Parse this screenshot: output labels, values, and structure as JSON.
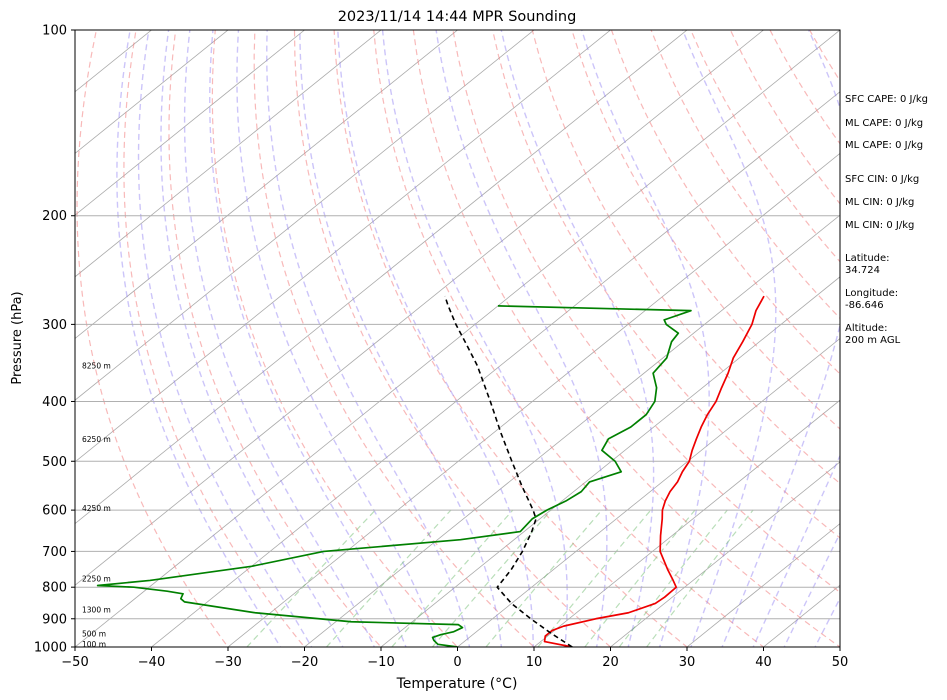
{
  "chart_data": {
    "type": "line",
    "diagram": "skew-t log-p",
    "title": "2023/11/14 14:44 MPR Sounding",
    "xlabel": "Temperature (°C)",
    "ylabel": "Pressure (hPa)",
    "xlim": [
      -50,
      50
    ],
    "ylim": [
      1000,
      100
    ],
    "y_scale": "log",
    "grid": true,
    "x_ticks": [
      -50,
      -40,
      -30,
      -20,
      -10,
      0,
      10,
      20,
      30,
      40,
      50
    ],
    "x_tick_labels": [
      "−50",
      "−40",
      "−30",
      "−20",
      "−10",
      "0",
      "10",
      "20",
      "30",
      "40",
      "50"
    ],
    "y_ticks": [
      1000,
      900,
      800,
      700,
      600,
      500,
      400,
      300,
      200,
      100
    ],
    "y_tick_labels": [
      "1000",
      "900",
      "800",
      "700",
      "600",
      "500",
      "400",
      "300",
      "200",
      "100"
    ],
    "series": [
      {
        "color": "#ee0000",
        "points": [
          [
            1000,
            15.0
          ],
          [
            980,
            10.5
          ],
          [
            960,
            9.7
          ],
          [
            940,
            9.7
          ],
          [
            925,
            10.5
          ],
          [
            900,
            13.5
          ],
          [
            880,
            16.8
          ],
          [
            850,
            18.8
          ],
          [
            830,
            19.0
          ],
          [
            800,
            18.9
          ],
          [
            780,
            17.4
          ],
          [
            750,
            15.0
          ],
          [
            700,
            11.0
          ],
          [
            660,
            8.5
          ],
          [
            620,
            6.0
          ],
          [
            600,
            4.6
          ],
          [
            580,
            3.5
          ],
          [
            560,
            2.6
          ],
          [
            540,
            2.0
          ],
          [
            520,
            1.0
          ],
          [
            500,
            0.2
          ],
          [
            480,
            -1.2
          ],
          [
            460,
            -2.5
          ],
          [
            440,
            -3.8
          ],
          [
            420,
            -5.0
          ],
          [
            400,
            -6.0
          ],
          [
            380,
            -7.5
          ],
          [
            360,
            -9.0
          ],
          [
            340,
            -10.8
          ],
          [
            320,
            -12.2
          ],
          [
            300,
            -13.8
          ],
          [
            285,
            -15.5
          ],
          [
            270,
            -16.8
          ]
        ]
      },
      {
        "color": "#008000",
        "points": [
          [
            1000,
            0.0
          ],
          [
            990,
            -3.0
          ],
          [
            975,
            -4.2
          ],
          [
            965,
            -4.8
          ],
          [
            955,
            -4.2
          ],
          [
            945,
            -3.0
          ],
          [
            930,
            -2.5
          ],
          [
            920,
            -3.5
          ],
          [
            910,
            -18.0
          ],
          [
            880,
            -32.0
          ],
          [
            845,
            -43.0
          ],
          [
            835,
            -44.0
          ],
          [
            820,
            -44.5
          ],
          [
            812,
            -47.0
          ],
          [
            800,
            -52.0
          ],
          [
            795,
            -57.0
          ],
          [
            780,
            -51.0
          ],
          [
            740,
            -40.0
          ],
          [
            700,
            -33.0
          ],
          [
            670,
            -17.0
          ],
          [
            650,
            -10.5
          ],
          [
            620,
            -11.0
          ],
          [
            600,
            -10.5
          ],
          [
            580,
            -9.5
          ],
          [
            560,
            -9.0
          ],
          [
            540,
            -9.5
          ],
          [
            520,
            -7.0
          ],
          [
            500,
            -9.5
          ],
          [
            480,
            -13.0
          ],
          [
            460,
            -14.0
          ],
          [
            440,
            -13.0
          ],
          [
            420,
            -13.0
          ],
          [
            400,
            -14.0
          ],
          [
            380,
            -16.0
          ],
          [
            360,
            -18.8
          ],
          [
            340,
            -19.5
          ],
          [
            320,
            -21.5
          ],
          [
            310,
            -22.0
          ],
          [
            300,
            -25.0
          ],
          [
            295,
            -26.0
          ],
          [
            285,
            -24.0
          ],
          [
            280,
            -50.0
          ]
        ]
      },
      {
        "color": "#000000",
        "dashed": true,
        "points": [
          [
            1000,
            15.0
          ],
          [
            950,
            10.0
          ],
          [
            900,
            5.0
          ],
          [
            850,
            0.0
          ],
          [
            800,
            -4.5
          ],
          [
            750,
            -5.5
          ],
          [
            700,
            -7.0
          ],
          [
            650,
            -9.0
          ],
          [
            620,
            -10.5
          ],
          [
            600,
            -12.3
          ],
          [
            550,
            -17.5
          ],
          [
            500,
            -23.0
          ],
          [
            450,
            -29.0
          ],
          [
            400,
            -35.5
          ],
          [
            350,
            -43.0
          ],
          [
            320,
            -48.5
          ],
          [
            300,
            -52.5
          ],
          [
            280,
            -56.5
          ],
          [
            270,
            -58.5
          ]
        ]
      }
    ],
    "height_labels": [
      {
        "text": "100 m",
        "pressure": 988
      },
      {
        "text": "500 m",
        "pressure": 950
      },
      {
        "text": "1300 m",
        "pressure": 870
      },
      {
        "text": "2250 m",
        "pressure": 775
      },
      {
        "text": "4250 m",
        "pressure": 595
      },
      {
        "text": "6250 m",
        "pressure": 460
      },
      {
        "text": "8250 m",
        "pressure": 350
      }
    ],
    "annotations": [
      "SFC CAPE: 0 J/kg",
      "ML CAPE: 0 J/kg",
      "ML CAPE: 0 J/kg",
      "SFC CIN: 0 J/kg",
      "ML CIN: 0 J/kg",
      "ML CIN: 0 J/kg",
      "Latitude:",
      "34.724",
      "Longitude:",
      "-86.646",
      "Altitude:",
      "200 m AGL"
    ],
    "background_colors": {
      "isotherm": "#aaaaaa",
      "dry_adiabat": "#f28080",
      "moist_adiabat": "#8f7ff2",
      "mixing_ratio": "#63b563"
    }
  }
}
